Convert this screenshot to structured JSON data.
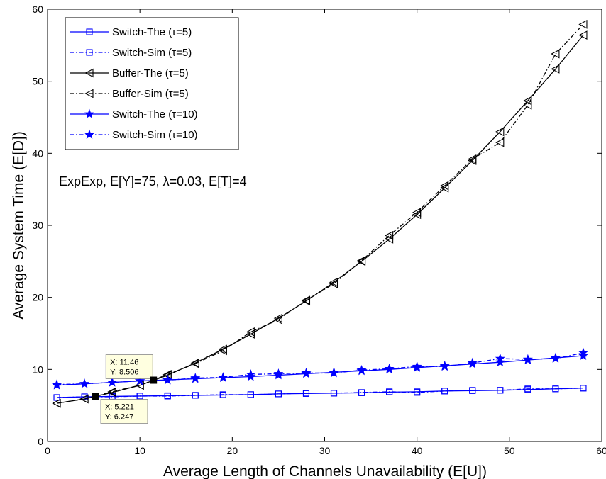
{
  "chart_data": {
    "type": "line",
    "xlabel": "Average Length of Channels Unavailability (E[U])",
    "ylabel": "Average System Time (E[D])",
    "xlim": [
      0,
      60
    ],
    "ylim": [
      0,
      60
    ],
    "xticks": [
      0,
      10,
      20,
      30,
      40,
      50,
      60
    ],
    "yticks": [
      0,
      10,
      20,
      30,
      40,
      50,
      60
    ],
    "grid": false,
    "legend_position": "top-left",
    "annotation": "ExpExp, E[Y]=75, λ=0.03, E[T]=4",
    "x": [
      1,
      4,
      7,
      10,
      13,
      16,
      19,
      22,
      25,
      28,
      31,
      34,
      37,
      40,
      43,
      46,
      49,
      52,
      55,
      58
    ],
    "series": [
      {
        "name": "Switch-The (τ=5)",
        "color": "#0000ff",
        "dash": "solid",
        "marker": "square",
        "values": [
          6.1,
          6.2,
          6.25,
          6.3,
          6.35,
          6.4,
          6.45,
          6.5,
          6.6,
          6.65,
          6.7,
          6.75,
          6.85,
          6.9,
          7.0,
          7.05,
          7.1,
          7.2,
          7.3,
          7.4
        ]
      },
      {
        "name": "Switch-Sim (τ=5)",
        "color": "#0000ff",
        "dash": "dashdot",
        "marker": "square",
        "values": [
          6.1,
          6.2,
          6.2,
          6.3,
          6.3,
          6.4,
          6.5,
          6.5,
          6.6,
          6.7,
          6.7,
          6.8,
          6.9,
          6.8,
          7.0,
          7.1,
          7.1,
          7.3,
          7.3,
          7.4
        ]
      },
      {
        "name": "Buffer-The (τ=5)",
        "color": "#000000",
        "dash": "solid",
        "marker": "triangle-left",
        "values": [
          5.3,
          5.9,
          6.8,
          7.8,
          9.2,
          10.9,
          12.8,
          14.9,
          17.1,
          19.5,
          22.1,
          25.0,
          28.1,
          31.5,
          35.2,
          39.0,
          43.0,
          47.3,
          51.7,
          56.4
        ]
      },
      {
        "name": "Buffer-Sim (τ=5)",
        "color": "#000000",
        "dash": "dashdot",
        "marker": "triangle-left",
        "values": [
          5.3,
          5.9,
          6.9,
          7.8,
          9.3,
          10.8,
          12.6,
          15.2,
          16.9,
          19.6,
          21.9,
          25.1,
          28.6,
          31.8,
          35.5,
          39.2,
          41.5,
          46.7,
          53.8,
          57.9
        ]
      },
      {
        "name": "Switch-The (τ=10)",
        "color": "#0000ff",
        "dash": "solid",
        "marker": "star",
        "values": [
          7.8,
          8.0,
          8.2,
          8.4,
          8.55,
          8.7,
          8.85,
          9.0,
          9.2,
          9.4,
          9.6,
          9.8,
          10.0,
          10.25,
          10.5,
          10.75,
          11.0,
          11.3,
          11.6,
          11.9
        ]
      },
      {
        "name": "Switch-Sim (τ=10)",
        "color": "#0000ff",
        "dash": "dashdot",
        "marker": "star",
        "values": [
          7.9,
          8.0,
          8.2,
          8.4,
          8.5,
          8.8,
          8.9,
          9.3,
          9.4,
          9.5,
          9.5,
          9.9,
          10.1,
          10.4,
          10.4,
          10.9,
          11.5,
          11.4,
          11.5,
          12.3
        ]
      }
    ],
    "datatips": [
      {
        "x": 11.46,
        "y": 8.506,
        "lines": [
          "X: 11.46",
          "Y: 8.506"
        ],
        "placement": "above-left"
      },
      {
        "x": 5.221,
        "y": 6.247,
        "lines": [
          "X: 5.221",
          "Y: 6.247"
        ],
        "placement": "below-right"
      }
    ]
  }
}
